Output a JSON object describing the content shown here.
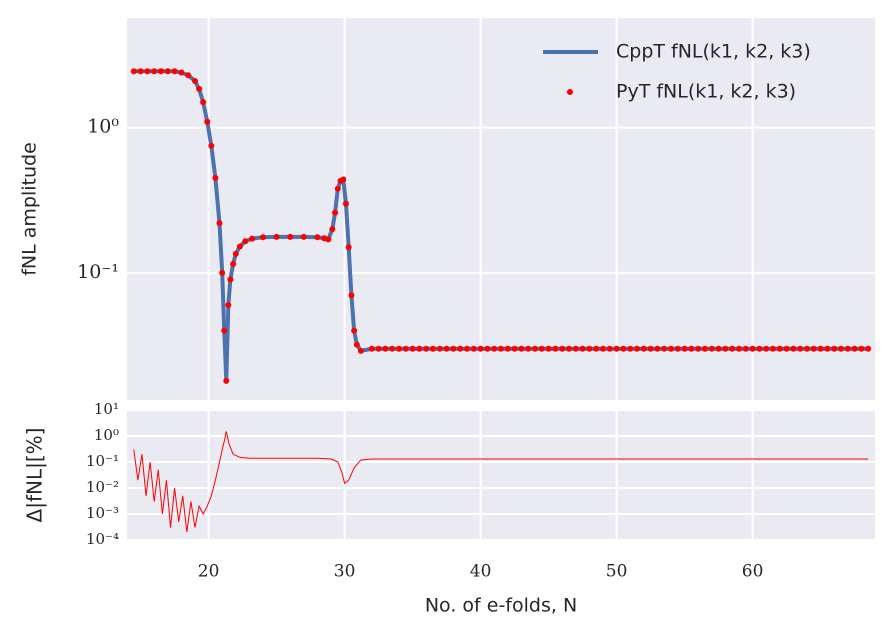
{
  "chart_data": [
    {
      "type": "line",
      "ylabel": "fNL amplitude",
      "x": [
        14.5,
        15,
        15.5,
        16,
        16.5,
        17,
        17.5,
        18,
        18.5,
        19,
        19.3,
        19.6,
        19.9,
        20.2,
        20.5,
        20.8,
        21.0,
        21.15,
        21.3,
        21.45,
        21.6,
        21.8,
        22.0,
        22.3,
        22.7,
        23.2,
        24,
        25,
        26,
        27,
        28,
        28.5,
        28.8,
        29.1,
        29.3,
        29.5,
        29.7,
        29.9,
        30.1,
        30.3,
        30.5,
        30.7,
        30.9,
        31.2,
        32,
        32.5,
        33,
        33.5,
        34,
        34.5,
        35,
        35.5,
        36,
        36.5,
        37,
        37.5,
        38,
        38.5,
        39,
        39.5,
        40,
        40.5,
        41,
        41.5,
        42,
        42.5,
        43,
        43.5,
        44,
        44.5,
        45,
        45.5,
        46,
        46.5,
        47,
        47.5,
        48,
        48.5,
        49,
        49.5,
        50,
        50.5,
        51,
        51.5,
        52,
        52.5,
        53,
        53.5,
        54,
        54.5,
        55,
        55.5,
        56,
        56.5,
        57,
        57.5,
        58,
        58.5,
        59,
        59.5,
        60,
        60.5,
        61,
        61.5,
        62,
        62.5,
        63,
        63.5,
        64,
        64.5,
        65,
        65.5,
        66,
        66.5,
        67,
        67.5,
        68,
        68.5
      ],
      "series": [
        {
          "name": "CppT fNL(k1, k2, k3)",
          "color": "#4c72b0",
          "marker": "line",
          "values": [
            2.45,
            2.45,
            2.45,
            2.45,
            2.45,
            2.45,
            2.45,
            2.4,
            2.3,
            2.1,
            1.85,
            1.5,
            1.1,
            0.75,
            0.45,
            0.22,
            0.1,
            0.04,
            0.018,
            0.06,
            0.09,
            0.115,
            0.135,
            0.152,
            0.165,
            0.172,
            0.176,
            0.177,
            0.177,
            0.177,
            0.176,
            0.173,
            0.17,
            0.2,
            0.26,
            0.38,
            0.43,
            0.44,
            0.3,
            0.15,
            0.07,
            0.04,
            0.032,
            0.029,
            0.03,
            0.03,
            0.03,
            0.03,
            0.03,
            0.03,
            0.03,
            0.03,
            0.03,
            0.03,
            0.03,
            0.03,
            0.03,
            0.03,
            0.03,
            0.03,
            0.03,
            0.03,
            0.03,
            0.03,
            0.03,
            0.03,
            0.03,
            0.03,
            0.03,
            0.03,
            0.03,
            0.03,
            0.03,
            0.03,
            0.03,
            0.03,
            0.03,
            0.03,
            0.03,
            0.03,
            0.03,
            0.03,
            0.03,
            0.03,
            0.03,
            0.03,
            0.03,
            0.03,
            0.03,
            0.03,
            0.03,
            0.03,
            0.03,
            0.03,
            0.03,
            0.03,
            0.03,
            0.03,
            0.03,
            0.03,
            0.03,
            0.03,
            0.03,
            0.03,
            0.03,
            0.03,
            0.03,
            0.03,
            0.03,
            0.03,
            0.03,
            0.03,
            0.03,
            0.03,
            0.03,
            0.03,
            0.03,
            0.03
          ]
        },
        {
          "name": "PyT fNL(k1, k2, k3)",
          "color": "#ff0000",
          "marker": "dot",
          "values": [
            2.45,
            2.45,
            2.45,
            2.45,
            2.45,
            2.45,
            2.45,
            2.4,
            2.3,
            2.1,
            1.85,
            1.5,
            1.1,
            0.75,
            0.45,
            0.22,
            0.1,
            0.04,
            0.018,
            0.06,
            0.09,
            0.115,
            0.135,
            0.152,
            0.165,
            0.172,
            0.176,
            0.177,
            0.177,
            0.177,
            0.176,
            0.173,
            0.17,
            0.2,
            0.26,
            0.38,
            0.43,
            0.44,
            0.3,
            0.15,
            0.07,
            0.04,
            0.032,
            0.029,
            0.03,
            0.03,
            0.03,
            0.03,
            0.03,
            0.03,
            0.03,
            0.03,
            0.03,
            0.03,
            0.03,
            0.03,
            0.03,
            0.03,
            0.03,
            0.03,
            0.03,
            0.03,
            0.03,
            0.03,
            0.03,
            0.03,
            0.03,
            0.03,
            0.03,
            0.03,
            0.03,
            0.03,
            0.03,
            0.03,
            0.03,
            0.03,
            0.03,
            0.03,
            0.03,
            0.03,
            0.03,
            0.03,
            0.03,
            0.03,
            0.03,
            0.03,
            0.03,
            0.03,
            0.03,
            0.03,
            0.03,
            0.03,
            0.03,
            0.03,
            0.03,
            0.03,
            0.03,
            0.03,
            0.03,
            0.03,
            0.03,
            0.03,
            0.03,
            0.03,
            0.03,
            0.03,
            0.03,
            0.03,
            0.03,
            0.03,
            0.03,
            0.03,
            0.03,
            0.03,
            0.03,
            0.03,
            0.03,
            0.03
          ]
        }
      ],
      "xlim": [
        14,
        69
      ],
      "ylim": [
        0.0133,
        5.7
      ],
      "log_y": true,
      "grid": true,
      "legend": "upper right",
      "xticks": [
        20,
        30,
        40,
        50,
        60
      ],
      "xtick_labels": false,
      "yticks": [
        {
          "value": 1,
          "label": "10⁰"
        },
        {
          "value": 0.1,
          "label": "10⁻¹"
        }
      ]
    },
    {
      "type": "line",
      "ylabel": "Δ|fNL|[%]",
      "xlabel": "No. of e-folds, N",
      "x": [
        14.5,
        14.8,
        15.1,
        15.4,
        15.7,
        16.0,
        16.3,
        16.6,
        16.9,
        17.2,
        17.5,
        17.8,
        18.1,
        18.4,
        18.7,
        19.0,
        19.3,
        19.6,
        19.9,
        20.2,
        20.5,
        20.8,
        21.0,
        21.2,
        21.3,
        21.5,
        21.8,
        22.3,
        23,
        25,
        28,
        29,
        29.5,
        29.8,
        30,
        30.3,
        30.7,
        31.2,
        32,
        40,
        50,
        60,
        68.5
      ],
      "series": [
        {
          "color": "#ff0000",
          "marker": "line",
          "values": [
            0.3,
            0.02,
            0.2,
            0.005,
            0.1,
            0.003,
            0.05,
            0.001,
            0.02,
            0.0003,
            0.01,
            0.0005,
            0.005,
            0.0002,
            0.003,
            0.0003,
            0.002,
            0.001,
            0.002,
            0.005,
            0.02,
            0.1,
            0.3,
            0.8,
            1.5,
            0.5,
            0.2,
            0.15,
            0.14,
            0.14,
            0.14,
            0.13,
            0.1,
            0.04,
            0.015,
            0.02,
            0.06,
            0.12,
            0.13,
            0.13,
            0.13,
            0.13,
            0.13
          ]
        }
      ],
      "xlim": [
        14,
        69
      ],
      "ylim": [
        0.0001,
        10
      ],
      "log_y": true,
      "grid": true,
      "xticks": [
        20,
        30,
        40,
        50,
        60
      ],
      "xtick_labels": true,
      "yticks": [
        {
          "value": 10,
          "label": "10¹"
        },
        {
          "value": 1,
          "label": "10⁰"
        },
        {
          "value": 0.1,
          "label": "10⁻¹"
        },
        {
          "value": 0.01,
          "label": "10⁻²"
        },
        {
          "value": 0.001,
          "label": "10⁻³"
        },
        {
          "value": 0.0001,
          "label": "10⁻⁴"
        }
      ]
    }
  ]
}
